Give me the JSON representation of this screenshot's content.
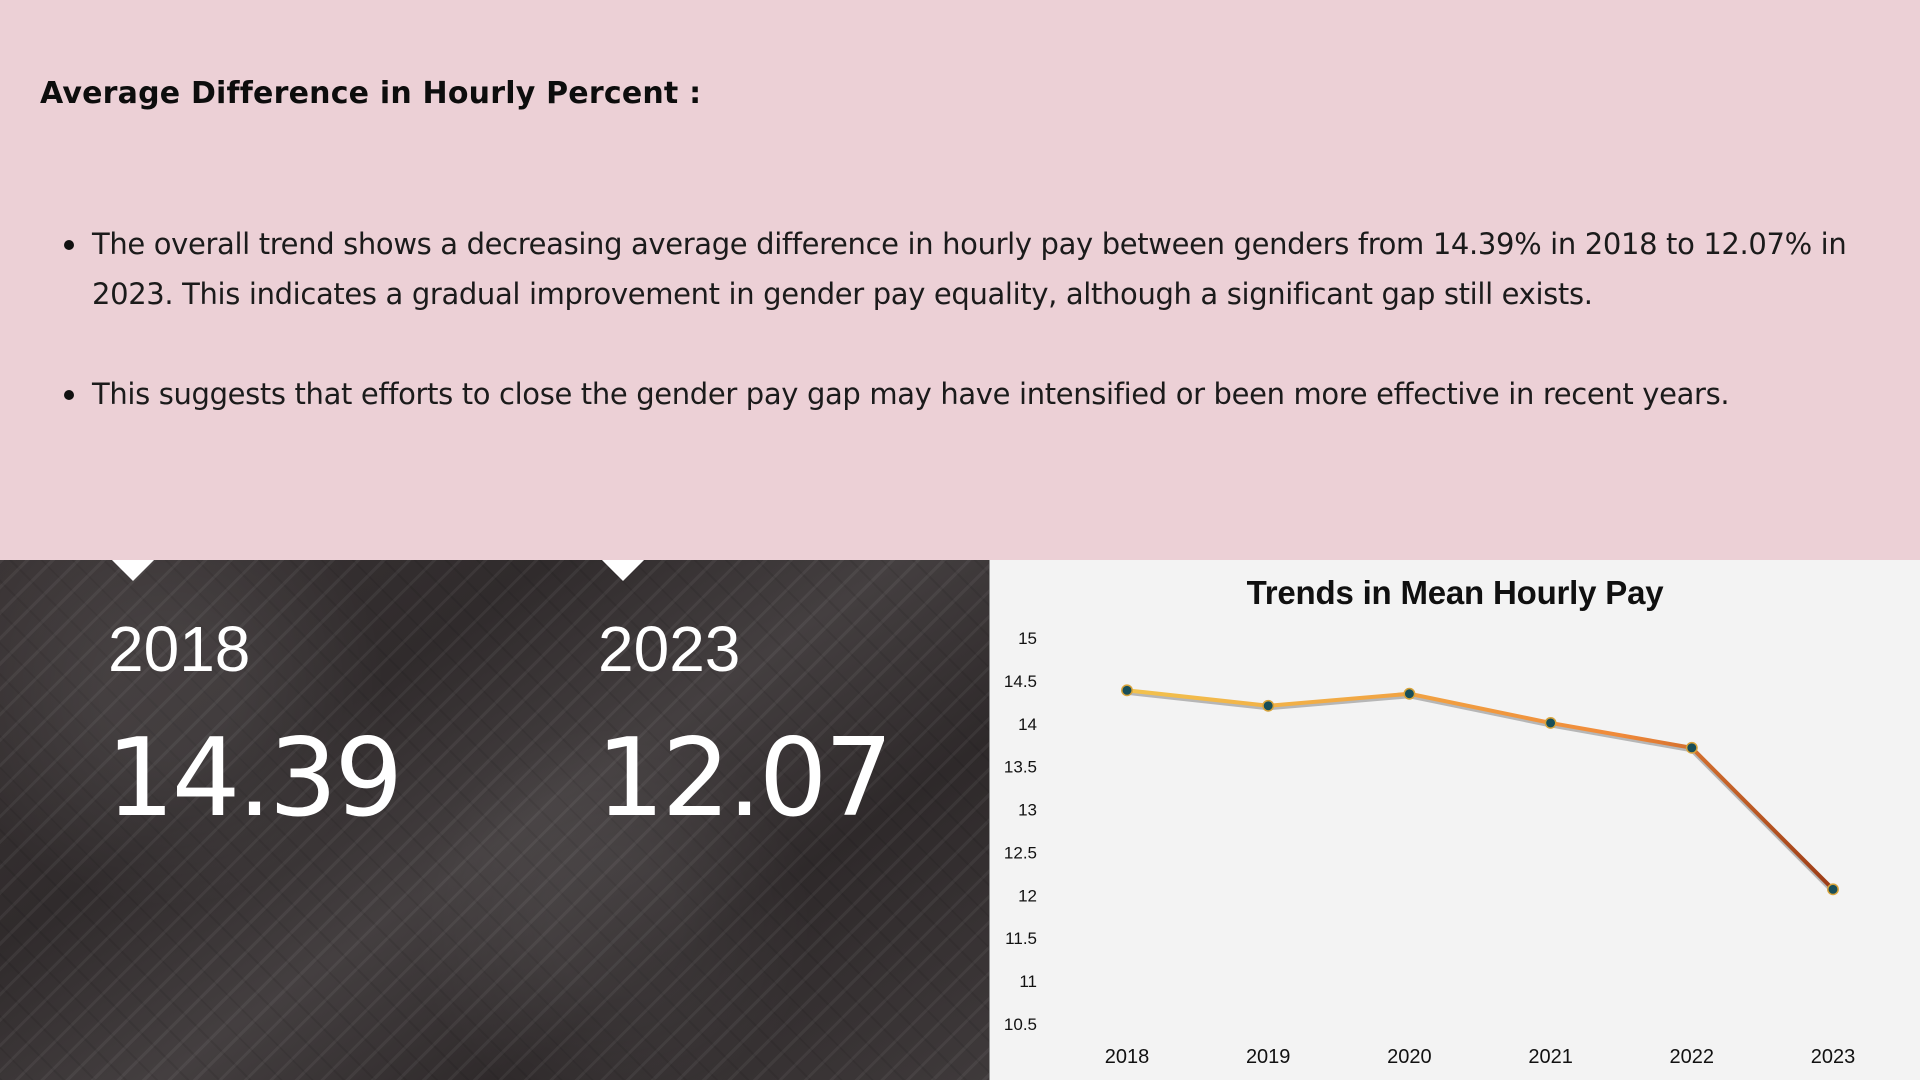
{
  "heading": "Average Difference in Hourly Percent :",
  "bullets": [
    "The overall trend shows a decreasing average difference in hourly pay between genders from 14.39% in 2018 to 12.07% in 2023. This indicates a gradual improvement in gender pay equality, although a significant gap still exists.",
    "This suggests that efforts to close the gender pay gap may have intensified or been more effective in recent years."
  ],
  "stats": [
    {
      "year": "2018",
      "value": "14.39"
    },
    {
      "year": "2023",
      "value": "12.07"
    }
  ],
  "chart_data": {
    "type": "line",
    "title": "Trends in Mean Hourly Pay",
    "categories": [
      "2018",
      "2019",
      "2020",
      "2021",
      "2022",
      "2023"
    ],
    "values": [
      14.39,
      14.21,
      14.35,
      14.01,
      13.72,
      12.07
    ],
    "xlabel": "",
    "ylabel": "",
    "ylim": [
      10.5,
      15
    ],
    "yticks": [
      "10.5",
      "11",
      "11.5",
      "12",
      "12.5",
      "13",
      "13.5",
      "14",
      "14.5",
      "15"
    ],
    "grid": false,
    "legend": "none",
    "colors": {
      "line_start": "#f2c24d",
      "line_mid": "#f08a3a",
      "line_end": "#9b3b16",
      "marker_fill": "#174e59",
      "marker_stroke": "#d7a33a"
    }
  }
}
